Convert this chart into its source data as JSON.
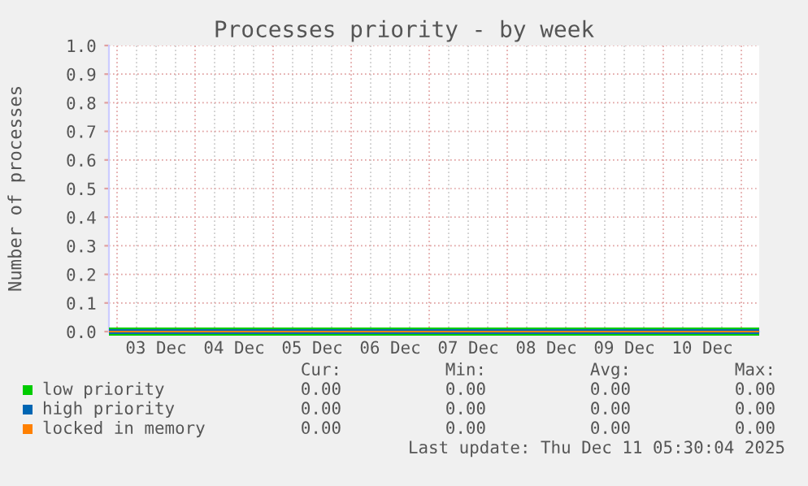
{
  "chart_data": {
    "type": "line",
    "title": "Processes priority - by week",
    "ylabel": "Number of processes",
    "series": [
      {
        "name": "low priority",
        "color": "#00cc00",
        "values": [
          0,
          0
        ]
      },
      {
        "name": "high priority",
        "color": "#0066b3",
        "values": [
          0,
          0
        ]
      },
      {
        "name": "locked in memory",
        "color": "#ff8000",
        "values": [
          0,
          0
        ]
      }
    ],
    "x": [
      "2025-12-02T21:30",
      "2025-12-11T05:30"
    ],
    "xlim": [
      "2025-12-02T21:30",
      "2025-12-11T05:30"
    ],
    "xticks": [
      {
        "value": "2025-12-03T00:00",
        "label": null
      },
      {
        "value": "2025-12-03T06:00",
        "label": null
      },
      {
        "value": "2025-12-03T12:00",
        "label": "03 Dec"
      },
      {
        "value": "2025-12-03T18:00",
        "label": null
      },
      {
        "value": "2025-12-04T00:00",
        "label": null
      },
      {
        "value": "2025-12-04T06:00",
        "label": null
      },
      {
        "value": "2025-12-04T12:00",
        "label": "04 Dec"
      },
      {
        "value": "2025-12-04T18:00",
        "label": null
      },
      {
        "value": "2025-12-05T00:00",
        "label": null
      },
      {
        "value": "2025-12-05T06:00",
        "label": null
      },
      {
        "value": "2025-12-05T12:00",
        "label": "05 Dec"
      },
      {
        "value": "2025-12-05T18:00",
        "label": null
      },
      {
        "value": "2025-12-06T00:00",
        "label": null
      },
      {
        "value": "2025-12-06T06:00",
        "label": null
      },
      {
        "value": "2025-12-06T12:00",
        "label": "06 Dec"
      },
      {
        "value": "2025-12-06T18:00",
        "label": null
      },
      {
        "value": "2025-12-07T00:00",
        "label": null
      },
      {
        "value": "2025-12-07T06:00",
        "label": null
      },
      {
        "value": "2025-12-07T12:00",
        "label": "07 Dec"
      },
      {
        "value": "2025-12-07T18:00",
        "label": null
      },
      {
        "value": "2025-12-08T00:00",
        "label": null
      },
      {
        "value": "2025-12-08T06:00",
        "label": null
      },
      {
        "value": "2025-12-08T12:00",
        "label": "08 Dec"
      },
      {
        "value": "2025-12-08T18:00",
        "label": null
      },
      {
        "value": "2025-12-09T00:00",
        "label": null
      },
      {
        "value": "2025-12-09T06:00",
        "label": null
      },
      {
        "value": "2025-12-09T12:00",
        "label": "09 Dec"
      },
      {
        "value": "2025-12-09T18:00",
        "label": null
      },
      {
        "value": "2025-12-10T00:00",
        "label": null
      },
      {
        "value": "2025-12-10T06:00",
        "label": null
      },
      {
        "value": "2025-12-10T12:00",
        "label": "10 Dec"
      },
      {
        "value": "2025-12-10T18:00",
        "label": null
      },
      {
        "value": "2025-12-11T00:00",
        "label": null
      }
    ],
    "ylim": [
      0,
      1.0
    ],
    "yticks": [
      {
        "value": 0,
        "label": "0.0"
      },
      {
        "value": 0.1,
        "label": "0.1"
      },
      {
        "value": 0.2,
        "label": "0.2"
      },
      {
        "value": 0.3,
        "label": "0.3"
      },
      {
        "value": 0.4,
        "label": "0.4"
      },
      {
        "value": 0.5,
        "label": "0.5"
      },
      {
        "value": 0.6,
        "label": "0.6"
      },
      {
        "value": 0.7,
        "label": "0.7"
      },
      {
        "value": 0.8,
        "label": "0.8"
      },
      {
        "value": 0.9,
        "label": "0.9"
      },
      {
        "value": 1.0,
        "label": "1.0"
      }
    ],
    "grid": true,
    "legend": "bottom left",
    "annotations": [
      "Cur:",
      "Min:",
      "Avg:",
      "Max:",
      "0.00",
      "0.00",
      "0.00",
      "0.00",
      "0.00",
      "0.00",
      "0.00",
      "0.00",
      "0.00",
      "0.00",
      "0.00",
      "0.00",
      "Last update: Thu Dec 11 05:30:04 2025"
    ]
  }
}
